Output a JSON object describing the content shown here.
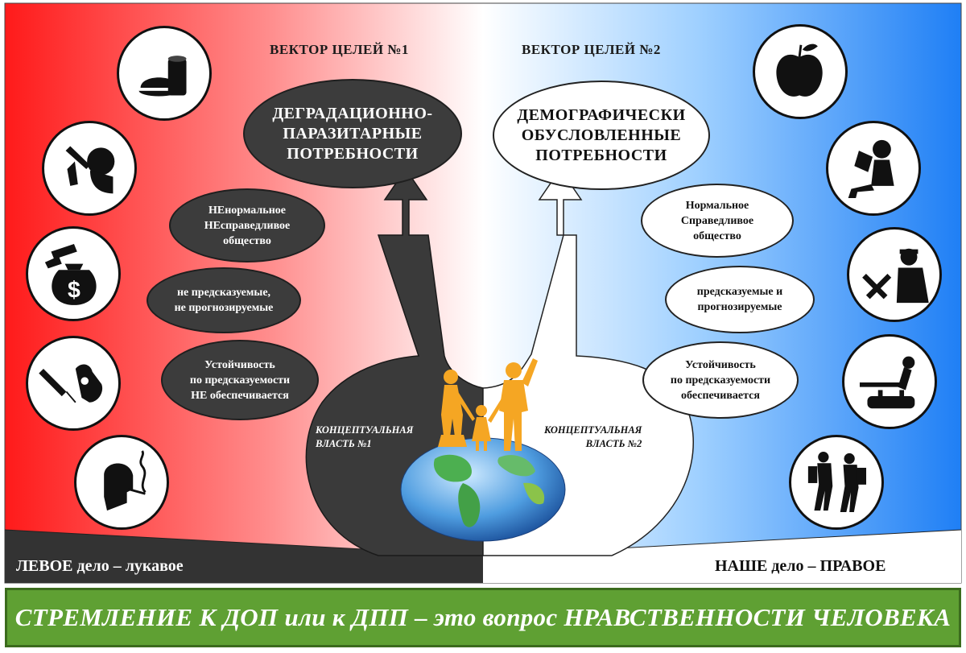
{
  "left": {
    "vector_title": "ВЕКТОР ЦЕЛЕЙ №1",
    "main_oval": "ДЕГРАДАЦИОННО-\nПАРАЗИТАРНЫЕ\nПОТРЕБНОСТИ",
    "ovals": [
      "НЕнормальное\nНЕсправедливое\nобщество",
      "не предсказуемые,\nне прогнозируемые",
      "Устойчивость\nпо предсказуемости\nНЕ обеспечивается"
    ],
    "power_label": "КОНЦЕПТУАЛЬНАЯ\nВЛАСТЬ №1",
    "corner_label": "ЛЕВОЕ дело – лукавое",
    "icons": [
      "fast-food-icon",
      "drinking-icon",
      "money-bag-icon",
      "syringe-icon",
      "smoking-icon"
    ]
  },
  "right": {
    "vector_title": "ВЕКТОР ЦЕЛЕЙ №2",
    "main_oval": "ДЕМОГРАФИЧЕСКИ\nОБУСЛОВЛЕННЫЕ\nПОТРЕБНОСТИ",
    "ovals": [
      "Нормальное\nСправедливое\nобщество",
      "предсказуемые и\nпрогнозируемые",
      "Устойчивость\nпо предсказуемости\nобеспечивается"
    ],
    "power_label": "КОНЦЕПТУАЛЬНАЯ\nВЛАСТЬ №2",
    "corner_label": "НАШЕ дело – ПРАВОЕ",
    "icons": [
      "apple-icon",
      "reading-icon",
      "worker-tools-icon",
      "gymnast-icon",
      "hikers-icon"
    ]
  },
  "banner": "СТРЕМЛЕНИЕ К ДОП или к ДПП  –  это вопрос НРАВСТВЕННОСТИ ЧЕЛОВЕКА",
  "colors": {
    "left_red": "#ff1a1a",
    "right_blue": "#1f7ff5",
    "dark_oval": "#3c3c3c",
    "banner_green": "#5fa033",
    "family_orange": "#f5a623"
  }
}
